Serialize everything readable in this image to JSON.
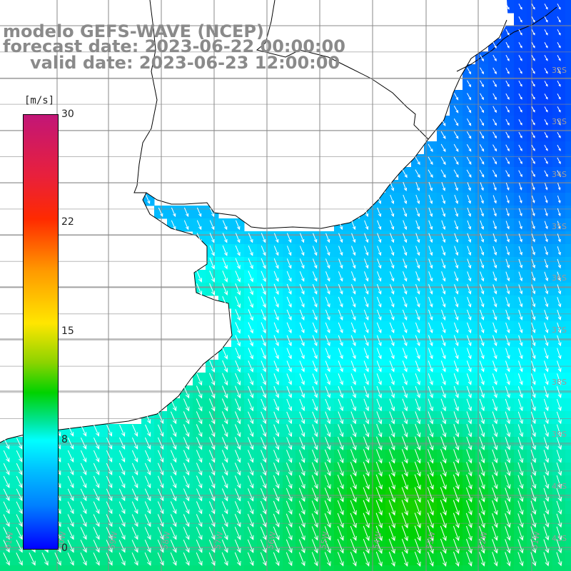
{
  "title": {
    "line1": "modelo GEFS-WAVE (NCEP)",
    "line2": "forecast date: 2023-06-22 00:00:00",
    "line3": "valid date: 2023-06-23 12:00:00"
  },
  "colorbar": {
    "unit": "[m/s]",
    "ticks": [
      "30",
      "22",
      "15",
      "8",
      "0"
    ],
    "tick_values": [
      30,
      22,
      15,
      8,
      0
    ],
    "range": [
      0,
      30
    ],
    "colors": [
      "#0000ff",
      "#0080ff",
      "#00bfff",
      "#00ffff",
      "#00e6a0",
      "#00d200",
      "#8dd300",
      "#ffe600",
      "#ff9a00",
      "#ff2a00",
      "#e8203c",
      "#c21677"
    ]
  },
  "map": {
    "land_color": "#ffffff",
    "coast_color": "#000000",
    "grid_color": "#8a8a8a",
    "arrow_color": "#ffffff",
    "lat_labels": [
      "32S",
      "33S",
      "34S",
      "35S",
      "36S",
      "37S",
      "38S",
      "39S",
      "40S",
      "41S"
    ],
    "lon_labels": [
      "61W",
      "60W",
      "59W",
      "58W",
      "57W",
      "56W",
      "55W",
      "54W",
      "53W",
      "52W",
      "51W"
    ]
  }
}
